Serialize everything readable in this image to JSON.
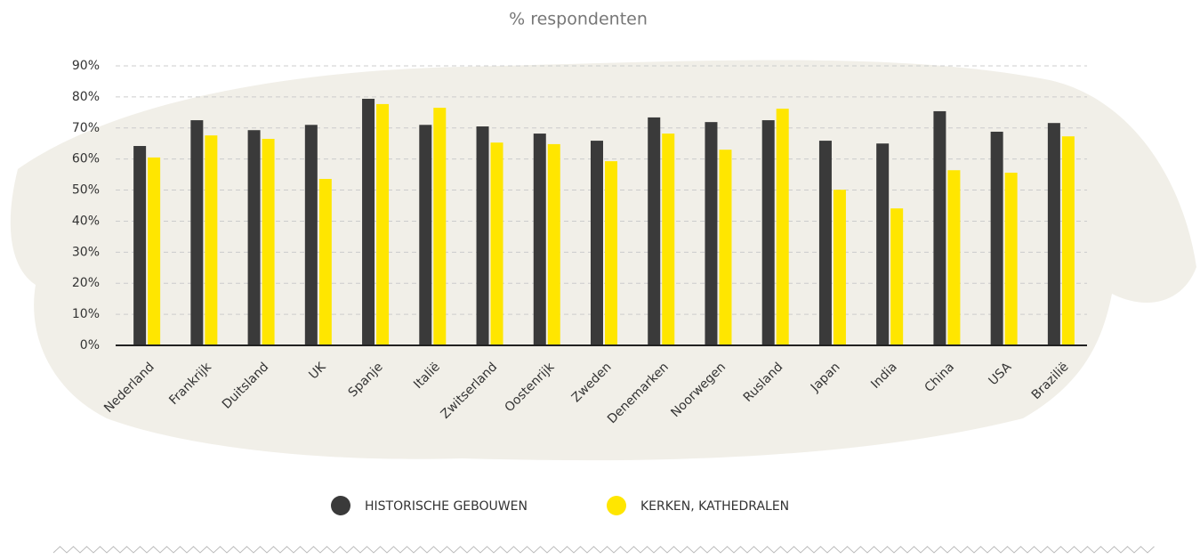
{
  "chart_data": {
    "type": "bar",
    "title": "% respondenten",
    "categories": [
      "Nederland",
      "Frankrijk",
      "Duitsland",
      "UK",
      "Spanje",
      "Italië",
      "Zwitserland",
      "Oostenrijk",
      "Zweden",
      "Denemarken",
      "Noorwegen",
      "Rusland",
      "Japan",
      "India",
      "China",
      "USA",
      "Brazilië"
    ],
    "series": [
      {
        "name": "HISTORISCHE GEBOUWEN",
        "color": "#3a3a3a",
        "values": [
          64.2,
          72.5,
          69.3,
          71,
          79.4,
          71,
          70.5,
          68.2,
          65.9,
          73.4,
          71.9,
          72.5,
          65.9,
          65,
          75.4,
          68.8,
          71.6
        ]
      },
      {
        "name": "KERKEN, KATHEDRALEN",
        "color": "#ffe600",
        "values": [
          60.5,
          67.6,
          66.5,
          53.6,
          77.7,
          76.5,
          65.3,
          64.8,
          59.3,
          68.2,
          63,
          76.2,
          50.1,
          44.1,
          56.4,
          55.6,
          67.3
        ]
      }
    ],
    "ylim": [
      0,
      90
    ],
    "yticks": [
      {
        "value": 0,
        "label": "0%"
      },
      {
        "value": 10,
        "label": "10%"
      },
      {
        "value": 20,
        "label": "20%"
      },
      {
        "value": 30,
        "label": "30%"
      },
      {
        "value": 40,
        "label": "40%"
      },
      {
        "value": 50,
        "label": "50%"
      },
      {
        "value": 60,
        "label": "60%"
      },
      {
        "value": 70,
        "label": "70%"
      },
      {
        "value": 80,
        "label": "80%"
      },
      {
        "value": 90,
        "label": "90%"
      }
    ],
    "grid": true
  }
}
